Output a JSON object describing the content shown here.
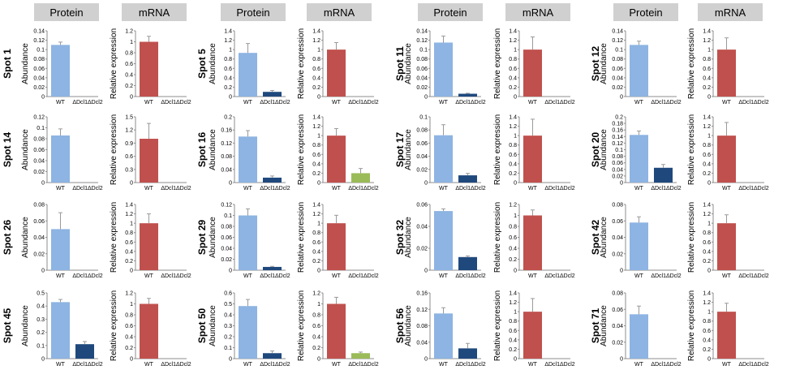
{
  "headers": [
    "Protein",
    "mRNA",
    "Protein",
    "mRNA",
    "Protein",
    "mRNA",
    "Protein",
    "mRNA"
  ],
  "colors": {
    "protein_wt": "#8db4e2",
    "protein_mut": "#1f497d",
    "mrna_wt": "#c0504d",
    "mrna_mut": "#9bbb59",
    "axis": "#8c8c8c",
    "error_bar": "#9a9a9a",
    "header_bg": "#d0d0d0"
  },
  "chart_data": [
    {
      "spot": "Spot 1",
      "type": "bar",
      "metric": "protein",
      "title": "",
      "xlabel": "",
      "ylabel": "Abundance",
      "categories": [
        "WT",
        "ΔDcl1ΔDcl2"
      ],
      "values": [
        0.11,
        0
      ],
      "errors": [
        0.006,
        0
      ],
      "ylim": [
        0,
        0.14
      ],
      "yticks": [
        "0",
        "0.02",
        "0.04",
        "0.06",
        "0.08",
        "0.1",
        "0.12",
        "0.14"
      ]
    },
    {
      "spot": "Spot 1",
      "type": "bar",
      "metric": "mrna",
      "title": "",
      "xlabel": "",
      "ylabel": "Relative expression",
      "categories": [
        "WT",
        "ΔDcl1ΔDcl2"
      ],
      "values": [
        1.0,
        0
      ],
      "errors": [
        0.1,
        0
      ],
      "ylim": [
        0,
        1.2
      ],
      "yticks": [
        "0",
        "0.2",
        "0.4",
        "0.6",
        "0.8",
        "1",
        "1.2"
      ]
    },
    {
      "spot": "Spot 5",
      "type": "bar",
      "metric": "protein",
      "title": "",
      "xlabel": "",
      "ylabel": "Abundance",
      "categories": [
        "WT",
        "ΔDcl1ΔDcl2"
      ],
      "values": [
        0.93,
        0.1
      ],
      "errors": [
        0.2,
        0.03
      ],
      "ylim": [
        0,
        1.4
      ],
      "yticks": [
        "0",
        "0.2",
        "0.4",
        "0.6",
        "0.8",
        "1",
        "1.2",
        "1.4"
      ]
    },
    {
      "spot": "Spot 5",
      "type": "bar",
      "metric": "mrna",
      "title": "",
      "xlabel": "",
      "ylabel": "Relative expression",
      "categories": [
        "WT",
        "ΔDcl1ΔDcl2"
      ],
      "values": [
        1.0,
        0
      ],
      "errors": [
        0.15,
        0
      ],
      "ylim": [
        0,
        1.4
      ],
      "yticks": [
        "0",
        "0.2",
        "0.4",
        "0.6",
        "0.8",
        "1",
        "1.2",
        "1.4"
      ]
    },
    {
      "spot": "Spot 11",
      "type": "bar",
      "metric": "protein",
      "title": "",
      "xlabel": "",
      "ylabel": "Abundance",
      "categories": [
        "WT",
        "ΔDcl1ΔDcl2"
      ],
      "values": [
        0.115,
        0.006
      ],
      "errors": [
        0.014,
        0.001
      ],
      "ylim": [
        0,
        0.14
      ],
      "yticks": [
        "0",
        "0.02",
        "0.04",
        "0.06",
        "0.08",
        "0.1",
        "0.12",
        "0.14"
      ]
    },
    {
      "spot": "Spot 11",
      "type": "bar",
      "metric": "mrna",
      "title": "",
      "xlabel": "",
      "ylabel": "Relative expression",
      "categories": [
        "WT",
        "ΔDcl1ΔDcl2"
      ],
      "values": [
        1.0,
        0
      ],
      "errors": [
        0.27,
        0
      ],
      "ylim": [
        0,
        1.4
      ],
      "yticks": [
        "0",
        "0.2",
        "0.4",
        "0.6",
        "0.8",
        "1",
        "1.2",
        "1.4"
      ]
    },
    {
      "spot": "Spot 12",
      "type": "bar",
      "metric": "protein",
      "title": "",
      "xlabel": "",
      "ylabel": "Abundance",
      "categories": [
        "WT",
        "ΔDcl1ΔDcl2"
      ],
      "values": [
        0.11,
        0
      ],
      "errors": [
        0.008,
        0
      ],
      "ylim": [
        0,
        0.14
      ],
      "yticks": [
        "0",
        "0.02",
        "0.04",
        "0.06",
        "0.08",
        "0.1",
        "0.12",
        "0.14"
      ]
    },
    {
      "spot": "Spot 12",
      "type": "bar",
      "metric": "mrna",
      "title": "",
      "xlabel": "",
      "ylabel": "Relative expression",
      "categories": [
        "WT",
        "ΔDcl1ΔDcl2"
      ],
      "values": [
        1.0,
        0
      ],
      "errors": [
        0.25,
        0
      ],
      "ylim": [
        0,
        1.4
      ],
      "yticks": [
        "0",
        "0.2",
        "0.4",
        "0.6",
        "0.8",
        "1",
        "1.2",
        "1.4"
      ]
    },
    {
      "spot": "Spot 14",
      "type": "bar",
      "metric": "protein",
      "title": "",
      "xlabel": "",
      "ylabel": "Abundance",
      "categories": [
        "WT",
        "ΔDcl1ΔDcl2"
      ],
      "values": [
        0.086,
        0
      ],
      "errors": [
        0.012,
        0
      ],
      "ylim": [
        0,
        0.12
      ],
      "yticks": [
        "0",
        "0.02",
        "0.04",
        "0.06",
        "0.08",
        "0.1",
        "0.12"
      ]
    },
    {
      "spot": "Spot 14",
      "type": "bar",
      "metric": "mrna",
      "title": "",
      "xlabel": "",
      "ylabel": "Relative expression",
      "categories": [
        "WT",
        "ΔDcl1ΔDcl2"
      ],
      "values": [
        1.0,
        0
      ],
      "errors": [
        0.35,
        0
      ],
      "ylim": [
        0,
        1.5
      ],
      "yticks": [
        "0",
        "0.3",
        "0.6",
        "0.9",
        "1.2",
        "1.5"
      ]
    },
    {
      "spot": "Spot 16",
      "type": "bar",
      "metric": "protein",
      "title": "",
      "xlabel": "",
      "ylabel": "Abundance",
      "categories": [
        "WT",
        "ΔDcl1ΔDcl2"
      ],
      "values": [
        0.14,
        0.015
      ],
      "errors": [
        0.018,
        0.005
      ],
      "ylim": [
        0,
        0.2
      ],
      "yticks": [
        "0",
        "0.04",
        "0.08",
        "0.12",
        "0.16",
        "0.2"
      ]
    },
    {
      "spot": "Spot 16",
      "type": "bar",
      "metric": "mrna",
      "title": "",
      "xlabel": "",
      "ylabel": "Relative expression",
      "categories": [
        "WT",
        "ΔDcl1ΔDcl2"
      ],
      "values": [
        1.0,
        0.2
      ],
      "errors": [
        0.15,
        0.1
      ],
      "ylim": [
        0,
        1.4
      ],
      "yticks": [
        "0",
        "0.2",
        "0.4",
        "0.6",
        "0.8",
        "1",
        "1.2",
        "1.4"
      ]
    },
    {
      "spot": "Spot 17",
      "type": "bar",
      "metric": "protein",
      "title": "",
      "xlabel": "",
      "ylabel": "Abundance",
      "categories": [
        "WT",
        "ΔDcl1ΔDcl2"
      ],
      "values": [
        0.072,
        0.011
      ],
      "errors": [
        0.016,
        0.003
      ],
      "ylim": [
        0,
        0.1
      ],
      "yticks": [
        "0",
        "0.02",
        "0.04",
        "0.06",
        "0.08",
        "0.1"
      ]
    },
    {
      "spot": "Spot 17",
      "type": "bar",
      "metric": "mrna",
      "title": "",
      "xlabel": "",
      "ylabel": "Relative expression",
      "categories": [
        "WT",
        "ΔDcl1ΔDcl2"
      ],
      "values": [
        1.0,
        0
      ],
      "errors": [
        0.35,
        0
      ],
      "ylim": [
        0,
        1.4
      ],
      "yticks": [
        "0",
        "0.2",
        "0.4",
        "0.6",
        "0.8",
        "1",
        "1.2",
        "1.4"
      ]
    },
    {
      "spot": "Spot 20",
      "type": "bar",
      "metric": "protein",
      "title": "",
      "xlabel": "",
      "ylabel": "Abundance",
      "categories": [
        "WT",
        "ΔDcl1ΔDcl2"
      ],
      "values": [
        0.145,
        0.045
      ],
      "errors": [
        0.012,
        0.01
      ],
      "ylim": [
        0,
        0.2
      ],
      "yticks": [
        "0",
        "0.02",
        "0.04",
        "0.06",
        "0.08",
        "0.1",
        "0.12",
        "0.14",
        "0.16",
        "0.18",
        "0.2"
      ]
    },
    {
      "spot": "Spot 20",
      "type": "bar",
      "metric": "mrna",
      "title": "",
      "xlabel": "",
      "ylabel": "Relative expression",
      "categories": [
        "WT",
        "ΔDcl1ΔDcl2"
      ],
      "values": [
        1.0,
        0
      ],
      "errors": [
        0.28,
        0
      ],
      "ylim": [
        0,
        1.4
      ],
      "yticks": [
        "0",
        "0.2",
        "0.4",
        "0.6",
        "0.8",
        "1",
        "1.2",
        "1.4"
      ]
    },
    {
      "spot": "Spot 26",
      "type": "bar",
      "metric": "protein",
      "title": "",
      "xlabel": "",
      "ylabel": "Abundance",
      "categories": [
        "WT",
        "ΔDcl1ΔDcl2"
      ],
      "values": [
        0.05,
        0
      ],
      "errors": [
        0.02,
        0
      ],
      "ylim": [
        0,
        0.08
      ],
      "yticks": [
        "0",
        "0.02",
        "0.04",
        "0.06",
        "0.08"
      ]
    },
    {
      "spot": "Spot 26",
      "type": "bar",
      "metric": "mrna",
      "title": "",
      "xlabel": "",
      "ylabel": "Relative expression",
      "categories": [
        "WT",
        "ΔDcl1ΔDcl2"
      ],
      "values": [
        1.0,
        0
      ],
      "errors": [
        0.2,
        0
      ],
      "ylim": [
        0,
        1.4
      ],
      "yticks": [
        "0",
        "0.2",
        "0.4",
        "0.6",
        "0.8",
        "1",
        "1.2",
        "1.4"
      ]
    },
    {
      "spot": "Spot 29",
      "type": "bar",
      "metric": "protein",
      "title": "",
      "xlabel": "",
      "ylabel": "Abundance",
      "categories": [
        "WT",
        "ΔDcl1ΔDcl2"
      ],
      "values": [
        0.1,
        0.006
      ],
      "errors": [
        0.012,
        0.001
      ],
      "ylim": [
        0,
        0.12
      ],
      "yticks": [
        "0",
        "0.02",
        "0.04",
        "0.06",
        "0.08",
        "0.1",
        "0.12"
      ]
    },
    {
      "spot": "Spot 29",
      "type": "bar",
      "metric": "mrna",
      "title": "",
      "xlabel": "",
      "ylabel": "Relative expression",
      "categories": [
        "WT",
        "ΔDcl1ΔDcl2"
      ],
      "values": [
        1.0,
        0
      ],
      "errors": [
        0.17,
        0
      ],
      "ylim": [
        0,
        1.4
      ],
      "yticks": [
        "0",
        "0.2",
        "0.4",
        "0.6",
        "0.8",
        "1",
        "1.2",
        "1.4"
      ]
    },
    {
      "spot": "Spot 32",
      "type": "bar",
      "metric": "protein",
      "title": "",
      "xlabel": "",
      "ylabel": "Abundance",
      "categories": [
        "WT",
        "ΔDcl1ΔDcl2"
      ],
      "values": [
        0.054,
        0.012
      ],
      "errors": [
        0.002,
        0.001
      ],
      "ylim": [
        0,
        0.06
      ],
      "yticks": [
        "0",
        "0.02",
        "0.04",
        "0.06"
      ]
    },
    {
      "spot": "Spot 32",
      "type": "bar",
      "metric": "mrna",
      "title": "",
      "xlabel": "",
      "ylabel": "Relative expression",
      "categories": [
        "WT",
        "ΔDcl1ΔDcl2"
      ],
      "values": [
        1.0,
        0
      ],
      "errors": [
        0.1,
        0
      ],
      "ylim": [
        0,
        1.2
      ],
      "yticks": [
        "0",
        "0.2",
        "0.4",
        "0.6",
        "0.8",
        "1",
        "1.2"
      ]
    },
    {
      "spot": "Spot 42",
      "type": "bar",
      "metric": "protein",
      "title": "",
      "xlabel": "",
      "ylabel": "Abundance",
      "categories": [
        "WT",
        "ΔDcl1ΔDcl2"
      ],
      "values": [
        0.058,
        0
      ],
      "errors": [
        0.007,
        0
      ],
      "ylim": [
        0,
        0.08
      ],
      "yticks": [
        "0",
        "0.02",
        "0.04",
        "0.06",
        "0.08"
      ]
    },
    {
      "spot": "Spot 42",
      "type": "bar",
      "metric": "mrna",
      "title": "",
      "xlabel": "",
      "ylabel": "Relative expression",
      "categories": [
        "WT",
        "ΔDcl1ΔDcl2"
      ],
      "values": [
        1.0,
        0
      ],
      "errors": [
        0.18,
        0
      ],
      "ylim": [
        0,
        1.4
      ],
      "yticks": [
        "0",
        "0.2",
        "0.4",
        "0.6",
        "0.8",
        "1",
        "1.2",
        "1.4"
      ]
    },
    {
      "spot": "Spot 45",
      "type": "bar",
      "metric": "protein",
      "title": "",
      "xlabel": "",
      "ylabel": "Abundance",
      "categories": [
        "WT",
        "ΔDcl1ΔDcl2"
      ],
      "values": [
        0.43,
        0.11
      ],
      "errors": [
        0.02,
        0.02
      ],
      "ylim": [
        0,
        0.5
      ],
      "yticks": [
        "0",
        "0.1",
        "0.2",
        "0.3",
        "0.4",
        "0.5"
      ]
    },
    {
      "spot": "Spot 45",
      "type": "bar",
      "metric": "mrna",
      "title": "",
      "xlabel": "",
      "ylabel": "Relative expression",
      "categories": [
        "WT",
        "ΔDcl1ΔDcl2"
      ],
      "values": [
        1.0,
        0
      ],
      "errors": [
        0.1,
        0
      ],
      "ylim": [
        0,
        1.2
      ],
      "yticks": [
        "0",
        "0.2",
        "0.4",
        "0.6",
        "0.8",
        "1",
        "1.2"
      ]
    },
    {
      "spot": "Spot 50",
      "type": "bar",
      "metric": "protein",
      "title": "",
      "xlabel": "",
      "ylabel": "Abundance",
      "categories": [
        "WT",
        "ΔDcl1ΔDcl2"
      ],
      "values": [
        0.48,
        0.05
      ],
      "errors": [
        0.06,
        0.02
      ],
      "ylim": [
        0,
        0.6
      ],
      "yticks": [
        "0",
        "0.1",
        "0.2",
        "0.3",
        "0.4",
        "0.5",
        "0.6"
      ]
    },
    {
      "spot": "Spot 50",
      "type": "bar",
      "metric": "mrna",
      "title": "",
      "xlabel": "",
      "ylabel": "Relative expression",
      "categories": [
        "WT",
        "ΔDcl1ΔDcl2"
      ],
      "values": [
        1.0,
        0.1
      ],
      "errors": [
        0.12,
        0.02
      ],
      "ylim": [
        0,
        1.2
      ],
      "yticks": [
        "0",
        "0.2",
        "0.4",
        "0.6",
        "0.8",
        "1",
        "1.2"
      ]
    },
    {
      "spot": "Spot 56",
      "type": "bar",
      "metric": "protein",
      "title": "",
      "xlabel": "",
      "ylabel": "Abundance",
      "categories": [
        "WT",
        "ΔDcl1ΔDcl2"
      ],
      "values": [
        0.11,
        0.025
      ],
      "errors": [
        0.014,
        0.012
      ],
      "ylim": [
        0,
        0.16
      ],
      "yticks": [
        "0",
        "0.04",
        "0.08",
        "0.12",
        "0.16"
      ]
    },
    {
      "spot": "Spot 56",
      "type": "bar",
      "metric": "mrna",
      "title": "",
      "xlabel": "",
      "ylabel": "Relative expression",
      "categories": [
        "WT",
        "ΔDcl1ΔDcl2"
      ],
      "values": [
        1.0,
        0
      ],
      "errors": [
        0.28,
        0
      ],
      "ylim": [
        0,
        1.4
      ],
      "yticks": [
        "0",
        "0.2",
        "0.4",
        "0.6",
        "0.8",
        "1",
        "1.2",
        "1.4"
      ]
    },
    {
      "spot": "Spot 71",
      "type": "bar",
      "metric": "protein",
      "title": "",
      "xlabel": "",
      "ylabel": "Abundance",
      "categories": [
        "WT",
        "ΔDcl1ΔDcl2"
      ],
      "values": [
        0.054,
        0
      ],
      "errors": [
        0.01,
        0
      ],
      "ylim": [
        0,
        0.08
      ],
      "yticks": [
        "0",
        "0.02",
        "0.04",
        "0.06",
        "0.08"
      ]
    },
    {
      "spot": "Spot 71",
      "type": "bar",
      "metric": "mrna",
      "title": "",
      "xlabel": "",
      "ylabel": "Relative expression",
      "categories": [
        "WT",
        "ΔDcl1ΔDcl2"
      ],
      "values": [
        1.0,
        0
      ],
      "errors": [
        0.18,
        0
      ],
      "ylim": [
        0,
        1.4
      ],
      "yticks": [
        "0",
        "0.2",
        "0.4",
        "0.6",
        "0.8",
        "1",
        "1.2",
        "1.4"
      ]
    }
  ]
}
